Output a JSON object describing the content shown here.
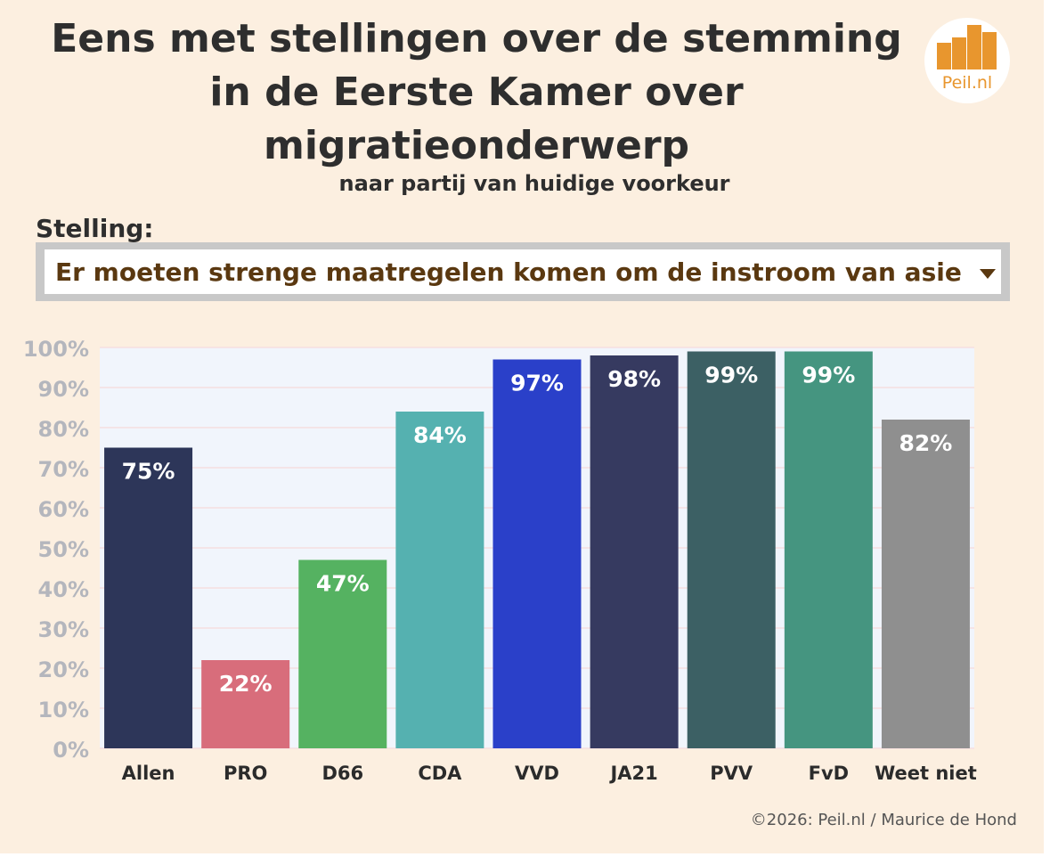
{
  "title_lines": [
    "Eens met stellingen over de stemming",
    "in de Eerste Kamer over",
    "migratieonderwerp"
  ],
  "subtitle": "naar partij van huidige voorkeur",
  "logo_text": "Peil.nl",
  "stelling_label": "Stelling:",
  "dropdown": {
    "selected": "Er moeten strenge maatregelen komen om de instroom van asie"
  },
  "footer": "©2026: Peil.nl / Maurice de Hond",
  "chart_data": {
    "type": "bar",
    "title": "Eens met stellingen over de stemming in de Eerste Kamer over migratieonderwerp",
    "subtitle": "naar partij van huidige voorkeur",
    "categories": [
      "Allen",
      "PRO",
      "D66",
      "CDA",
      "VVD",
      "JA21",
      "PVV",
      "FvD",
      "Weet niet"
    ],
    "values": [
      75,
      22,
      47,
      84,
      97,
      98,
      99,
      99,
      82
    ],
    "data_labels": [
      "75%",
      "22%",
      "47%",
      "84%",
      "97%",
      "98%",
      "99%",
      "99%",
      "82%"
    ],
    "colors": [
      "#2d3659",
      "#d86d7b",
      "#55b261",
      "#55b1b0",
      "#2a40c9",
      "#363a60",
      "#3c6064",
      "#459580",
      "#8f8f8f"
    ],
    "yticks": [
      "0%",
      "10%",
      "20%",
      "30%",
      "40%",
      "50%",
      "60%",
      "70%",
      "80%",
      "90%",
      "100%"
    ],
    "ylim": [
      0,
      100
    ],
    "xlabel": "",
    "ylabel": "",
    "grid": true,
    "plot_background": "#f1f5fc"
  }
}
